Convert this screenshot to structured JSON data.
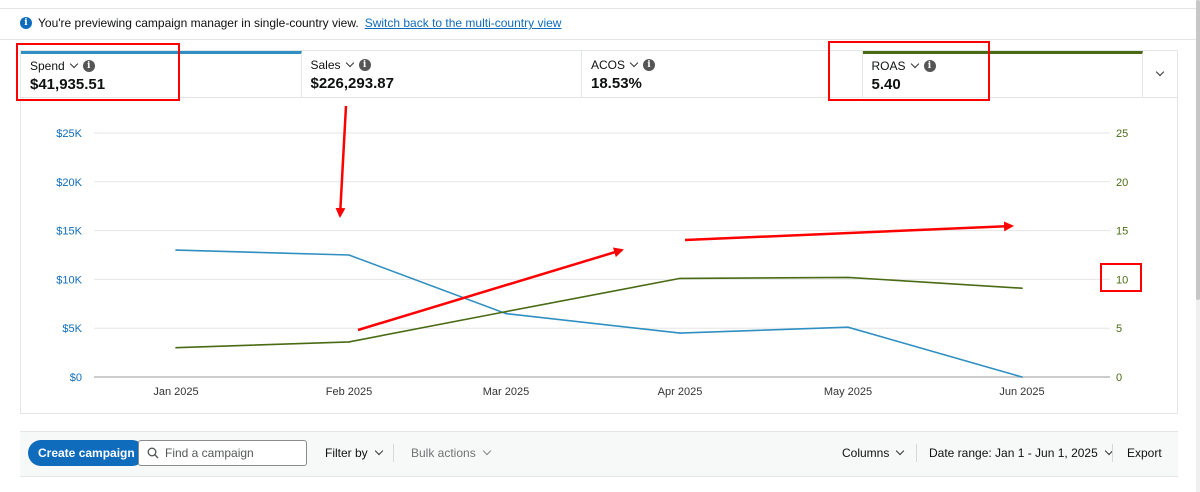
{
  "banner": {
    "text": "You're previewing campaign manager in single-country view.",
    "link": "Switch back to the multi-country view"
  },
  "metrics": [
    {
      "label": "Spend",
      "value": "$41,935.51",
      "selected": "blue"
    },
    {
      "label": "Sales",
      "value": "$226,293.87",
      "selected": ""
    },
    {
      "label": "ACOS",
      "value": "18.53%",
      "selected": ""
    },
    {
      "label": "ROAS",
      "value": "5.40",
      "selected": "green"
    }
  ],
  "chart_data": {
    "type": "line",
    "x": [
      "Jan 2025",
      "Feb 2025",
      "Mar 2025",
      "Apr 2025",
      "May 2025",
      "Jun 2025"
    ],
    "left_axis": {
      "ticks": [
        "$0",
        "$5K",
        "$10K",
        "$15K",
        "$20K",
        "$25K"
      ],
      "range": [
        0,
        25000
      ]
    },
    "right_axis": {
      "ticks": [
        "0",
        "5",
        "10",
        "15",
        "20",
        "25"
      ],
      "range": [
        0,
        25
      ]
    },
    "grid": true,
    "series": [
      {
        "name": "Spend",
        "axis": "left",
        "color": "#2f8fc2",
        "values": [
          13000,
          12500,
          6500,
          4500,
          5100,
          0
        ]
      },
      {
        "name": "ROAS",
        "axis": "right",
        "color": "#4a6b14",
        "values": [
          3.0,
          3.6,
          6.7,
          10.1,
          10.2,
          9.1
        ]
      }
    ]
  },
  "toolbar": {
    "create_campaign": "Create campaign",
    "search_placeholder": "Find a campaign",
    "filter_by": "Filter by",
    "bulk_actions": "Bulk actions",
    "columns": "Columns",
    "date_range": "Date range: Jan 1 - Jun 1, 2025",
    "export": "Export"
  },
  "colors": {
    "accent": "#0f6cbd",
    "spend_line": "#2f8fc2",
    "roas_line": "#4a6b14",
    "annotation": "#ff0000"
  }
}
